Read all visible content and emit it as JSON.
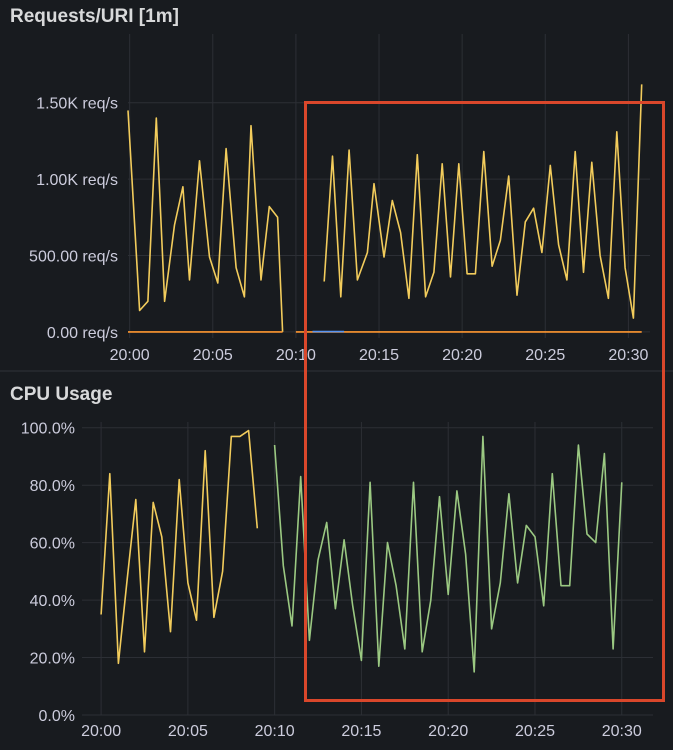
{
  "colors": {
    "background": "#181b1f",
    "grid": "#2c2f35",
    "text": "#ccccdc",
    "yellow": "#f2cc5c",
    "green": "#9bc982",
    "orange": "#ff9830",
    "blue": "#5794f2",
    "highlight": "#d9472b"
  },
  "chart_data": [
    {
      "type": "line",
      "title": "Requests/URI [1m]",
      "y_tick_labels": [
        "0.00 req/s",
        "500.00 req/s",
        "1.00K req/s",
        "1.50K req/s"
      ],
      "y_tick_values": [
        0,
        500,
        1000,
        1500
      ],
      "x_tick_labels": [
        "20:00",
        "20:05",
        "20:10",
        "20:15",
        "20:20",
        "20:25",
        "20:30"
      ],
      "x_tick_values": [
        "20:00",
        "20:05",
        "20:10",
        "20:15",
        "20:20",
        "20:25",
        "20:30"
      ],
      "xlim": [
        "19:59.9",
        "20:31.3"
      ],
      "ylim": [
        -40,
        1950
      ],
      "grid": true,
      "series": [
        {
          "color": "#f2cc5c",
          "segments": [
            [
              [
                "19:59.9",
                1450
              ],
              [
                "20:00.6",
                140
              ],
              [
                "20:01.1",
                200
              ],
              [
                "20:01.6",
                1400
              ],
              [
                "20:02.1",
                200
              ],
              [
                "20:02.7",
                700
              ],
              [
                "20:03.2",
                950
              ],
              [
                "20:03.6",
                340
              ],
              [
                "20:04.2",
                1120
              ],
              [
                "20:04.8",
                490
              ],
              [
                "20:05.3",
                320
              ],
              [
                "20:05.8",
                1200
              ],
              [
                "20:06.4",
                420
              ],
              [
                "20:06.9",
                230
              ],
              [
                "20:07.3",
                1350
              ],
              [
                "20:07.9",
                340
              ],
              [
                "20:08.4",
                820
              ],
              [
                "20:08.9",
                750
              ],
              [
                "20:09.2",
                0
              ]
            ],
            [
              [
                "20:11.7",
                330
              ],
              [
                "20:12.2",
                1150
              ],
              [
                "20:12.7",
                230
              ],
              [
                "20:13.2",
                1190
              ],
              [
                "20:13.7",
                340
              ],
              [
                "20:14.3",
                520
              ],
              [
                "20:14.7",
                970
              ],
              [
                "20:15.3",
                490
              ],
              [
                "20:15.8",
                860
              ],
              [
                "20:16.3",
                650
              ],
              [
                "20:16.8",
                220
              ],
              [
                "20:17.3",
                1160
              ],
              [
                "20:17.8",
                230
              ],
              [
                "20:18.3",
                390
              ],
              [
                "20:18.8",
                1100
              ],
              [
                "20:19.3",
                360
              ],
              [
                "20:19.8",
                1100
              ],
              [
                "20:20.3",
                380
              ],
              [
                "20:20.8",
                380
              ],
              [
                "20:21.3",
                1180
              ],
              [
                "20:21.8",
                430
              ],
              [
                "20:22.3",
                600
              ],
              [
                "20:22.8",
                1020
              ],
              [
                "20:23.3",
                240
              ],
              [
                "20:23.8",
                720
              ],
              [
                "20:24.3",
                810
              ],
              [
                "20:24.8",
                520
              ],
              [
                "20:25.3",
                1090
              ],
              [
                "20:25.8",
                570
              ],
              [
                "20:26.3",
                340
              ],
              [
                "20:26.8",
                1180
              ],
              [
                "20:27.3",
                390
              ],
              [
                "20:27.8",
                1110
              ],
              [
                "20:28.3",
                500
              ],
              [
                "20:28.8",
                220
              ],
              [
                "20:29.3",
                1310
              ],
              [
                "20:29.8",
                420
              ],
              [
                "20:30.3",
                90
              ],
              [
                "20:30.8",
                1620
              ]
            ]
          ]
        },
        {
          "color": "#ff9830",
          "segments": [
            [
              [
                "19:59.9",
                0
              ],
              [
                "20:09.2",
                0
              ]
            ],
            [
              [
                "20:10.0",
                0
              ],
              [
                "20:30.8",
                0
              ]
            ]
          ]
        },
        {
          "color": "#5794f2",
          "segments": [
            [
              [
                "20:11.0",
                2
              ],
              [
                "20:12.9",
                2
              ]
            ]
          ]
        }
      ]
    },
    {
      "type": "line",
      "title": "CPU Usage",
      "y_tick_labels": [
        "0.0%",
        "20.0%",
        "40.0%",
        "60.0%",
        "80.0%",
        "100.0%"
      ],
      "y_tick_values": [
        0,
        20,
        40,
        60,
        80,
        100
      ],
      "x_tick_labels": [
        "20:00",
        "20:05",
        "20:10",
        "20:15",
        "20:20",
        "20:25",
        "20:30"
      ],
      "x_tick_values": [
        "20:00",
        "20:05",
        "20:10",
        "20:15",
        "20:20",
        "20:25",
        "20:30"
      ],
      "xlim": [
        "19:58.9",
        "20:31.8"
      ],
      "ylim": [
        0,
        102
      ],
      "grid": true,
      "series": [
        {
          "color": "#f2cc5c",
          "segments": [
            [
              [
                "20:00.0",
                35
              ],
              [
                "20:00.5",
                84
              ],
              [
                "20:01.0",
                18
              ],
              [
                "20:01.5",
                47
              ],
              [
                "20:02.0",
                75
              ],
              [
                "20:02.5",
                22
              ],
              [
                "20:03.0",
                74
              ],
              [
                "20:03.5",
                62
              ],
              [
                "20:04.0",
                29
              ],
              [
                "20:04.5",
                82
              ],
              [
                "20:05.0",
                46
              ],
              [
                "20:05.5",
                33
              ],
              [
                "20:06.0",
                92
              ],
              [
                "20:06.5",
                34
              ],
              [
                "20:07.0",
                50
              ],
              [
                "20:07.5",
                97
              ],
              [
                "20:08.0",
                97
              ],
              [
                "20:08.5",
                99
              ],
              [
                "20:09.0",
                65
              ]
            ]
          ]
        },
        {
          "color": "#9bc982",
          "segments": [
            [
              [
                "20:10.0",
                94
              ],
              [
                "20:10.5",
                52
              ],
              [
                "20:11.0",
                31
              ],
              [
                "20:11.5",
                83
              ],
              [
                "20:12.0",
                26
              ],
              [
                "20:12.5",
                54
              ],
              [
                "20:13.0",
                67
              ],
              [
                "20:13.5",
                37
              ],
              [
                "20:14.0",
                61
              ],
              [
                "20:14.5",
                38
              ],
              [
                "20:15.0",
                19
              ],
              [
                "20:15.5",
                81
              ],
              [
                "20:16.0",
                17
              ],
              [
                "20:16.5",
                60
              ],
              [
                "20:17.0",
                45
              ],
              [
                "20:17.5",
                23
              ],
              [
                "20:18.0",
                81
              ],
              [
                "20:18.5",
                22
              ],
              [
                "20:19.0",
                40
              ],
              [
                "20:19.5",
                76
              ],
              [
                "20:20.0",
                42
              ],
              [
                "20:20.5",
                78
              ],
              [
                "20:21.0",
                56
              ],
              [
                "20:21.5",
                15
              ],
              [
                "20:22.0",
                97
              ],
              [
                "20:22.5",
                30
              ],
              [
                "20:23.0",
                46
              ],
              [
                "20:23.5",
                77
              ],
              [
                "20:24.0",
                46
              ],
              [
                "20:24.5",
                66
              ],
              [
                "20:25.0",
                62
              ],
              [
                "20:25.5",
                38
              ],
              [
                "20:26.0",
                84
              ],
              [
                "20:26.5",
                45
              ],
              [
                "20:27.0",
                45
              ],
              [
                "20:27.5",
                94
              ],
              [
                "20:28.0",
                63
              ],
              [
                "20:28.5",
                60
              ],
              [
                "20:29.0",
                91
              ],
              [
                "20:29.5",
                23
              ],
              [
                "20:30.0",
                81
              ]
            ]
          ]
        }
      ]
    }
  ]
}
